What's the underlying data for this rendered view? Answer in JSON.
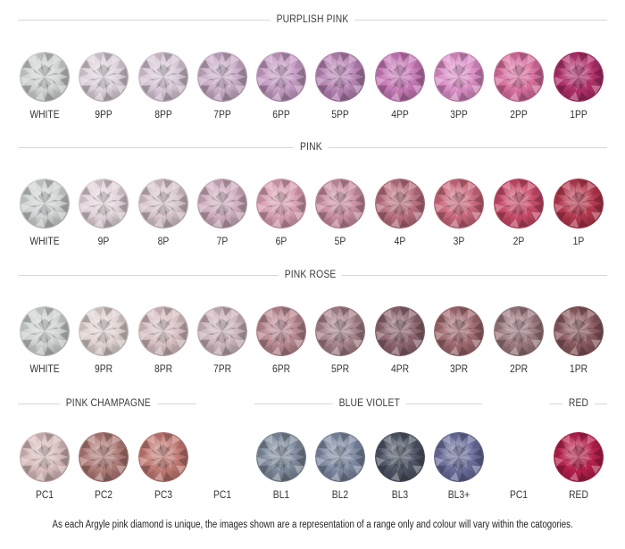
{
  "sections": [
    {
      "title": "PURPLISH PINK",
      "gems": [
        {
          "label": "WHITE",
          "color": "#cfd3d2"
        },
        {
          "label": "9PP",
          "color": "#ddd2dc"
        },
        {
          "label": "8PP",
          "color": "#d8c8d7"
        },
        {
          "label": "7PP",
          "color": "#c9aec8"
        },
        {
          "label": "6PP",
          "color": "#c59cc3"
        },
        {
          "label": "5PP",
          "color": "#b785b4"
        },
        {
          "label": "4PP",
          "color": "#c77ab7"
        },
        {
          "label": "3PP",
          "color": "#db8fc6"
        },
        {
          "label": "2PP",
          "color": "#d8709f"
        },
        {
          "label": "1PP",
          "color": "#b0306a"
        }
      ]
    },
    {
      "title": "PINK",
      "gems": [
        {
          "label": "WHITE",
          "color": "#cfd3d2"
        },
        {
          "label": "9P",
          "color": "#e2d4db"
        },
        {
          "label": "8P",
          "color": "#d8c6cc"
        },
        {
          "label": "7P",
          "color": "#cfaebf"
        },
        {
          "label": "6P",
          "color": "#d8a0b2"
        },
        {
          "label": "5P",
          "color": "#c98fa2"
        },
        {
          "label": "4P",
          "color": "#b9707f"
        },
        {
          "label": "3P",
          "color": "#c9697c"
        },
        {
          "label": "2P",
          "color": "#c74a68"
        },
        {
          "label": "1P",
          "color": "#b4384f"
        }
      ]
    },
    {
      "title": "PINK ROSE",
      "gems": [
        {
          "label": "WHITE",
          "color": "#cfd3d2"
        },
        {
          "label": "9PR",
          "color": "#e0d3d2"
        },
        {
          "label": "8PR",
          "color": "#d8c0c3"
        },
        {
          "label": "7PR",
          "color": "#cdb6be"
        },
        {
          "label": "6PR",
          "color": "#b98a92"
        },
        {
          "label": "5PR",
          "color": "#a8848c"
        },
        {
          "label": "4PR",
          "color": "#8e6670"
        },
        {
          "label": "3PR",
          "color": "#a06a70"
        },
        {
          "label": "2PR",
          "color": "#9c7a80"
        },
        {
          "label": "1PR",
          "color": "#8a5a60"
        }
      ]
    }
  ],
  "bottom_groups": [
    {
      "title": "PINK CHAMPAGNE",
      "gems": [
        {
          "label": "PC1",
          "color": "#d8bcbc"
        },
        {
          "label": "PC2",
          "color": "#b07c78"
        },
        {
          "label": "PC3",
          "color": "#c07a74"
        }
      ],
      "trailing_label": "PC1"
    },
    {
      "title": "BLUE VIOLET",
      "gems": [
        {
          "label": "BL1",
          "color": "#7f8b9c"
        },
        {
          "label": "BL2",
          "color": "#7f8aa2"
        },
        {
          "label": "BL3",
          "color": "#4f5566"
        },
        {
          "label": "BL3+",
          "color": "#6b6e9a"
        }
      ],
      "trailing_label": "PC1"
    },
    {
      "title": "RED",
      "gems": [
        {
          "label": "RED",
          "color": "#b5204c"
        }
      ]
    }
  ],
  "footnote": "As each Argyle pink diamond is unique, the images shown are a representation of a range only and colour will vary within the catogories."
}
